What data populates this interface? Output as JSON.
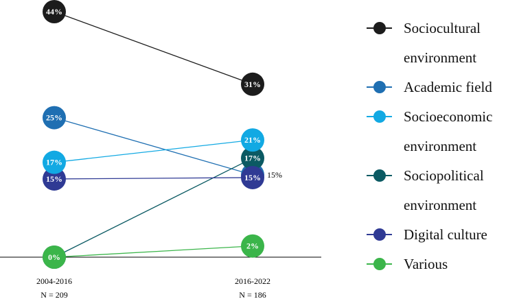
{
  "chart_data": {
    "type": "line",
    "title": "",
    "xlabel": "",
    "ylabel": "",
    "ylim": [
      0,
      44
    ],
    "x": [
      {
        "period": "2004-2016",
        "n_label": "N = 209"
      },
      {
        "period": "2016-2022",
        "n_label": "N = 186"
      }
    ],
    "series": [
      {
        "name": "Sociocultural environment",
        "legend_lines": [
          "Sociocultural",
          "environment"
        ],
        "color": "#1c1c1c",
        "values": [
          44,
          31
        ],
        "labels": [
          "44%",
          "31%"
        ]
      },
      {
        "name": "Academic field",
        "legend_lines": [
          "Academic field"
        ],
        "color": "#1f6fb2",
        "values": [
          25,
          15
        ],
        "labels": [
          "25%",
          ""
        ]
      },
      {
        "name": "Socioeconomic environment",
        "legend_lines": [
          "Socioeconomic",
          "environment"
        ],
        "color": "#12a9e3",
        "values": [
          17,
          21
        ],
        "labels": [
          "17%",
          "21%"
        ]
      },
      {
        "name": "Sociopolitical environment",
        "legend_lines": [
          "Sociopolitical",
          "environment"
        ],
        "color": "#0b5a63",
        "values": [
          0,
          17
        ],
        "labels": [
          "",
          "17%"
        ]
      },
      {
        "name": "Digital culture",
        "legend_lines": [
          "Digital culture"
        ],
        "color": "#2f3a94",
        "values": [
          15,
          15
        ],
        "labels": [
          "15%",
          "15%"
        ]
      },
      {
        "name": "Various",
        "legend_lines": [
          "Various"
        ],
        "color": "#3bb54a",
        "values": [
          0,
          2
        ],
        "labels": [
          "0%",
          "2%"
        ]
      }
    ],
    "annotations": [
      {
        "text": "15%",
        "attach": "Academic field",
        "point": 1,
        "placement": "right"
      }
    ],
    "legend": "right",
    "grid": false
  }
}
